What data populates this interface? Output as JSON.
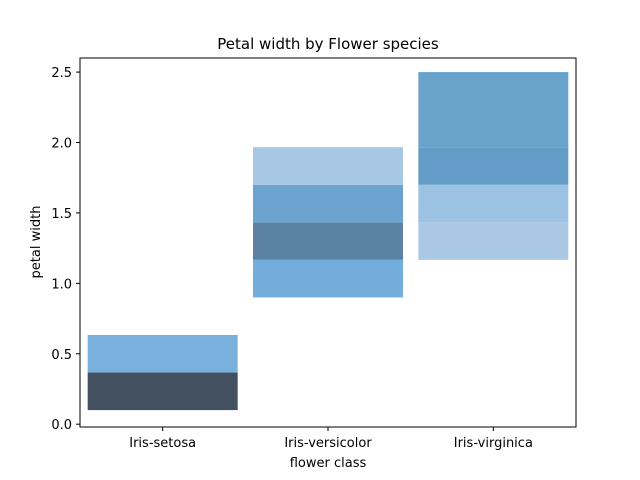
{
  "chart_data": {
    "type": "heatmap",
    "title": "Petal width by Flower species",
    "xlabel": "flower class",
    "ylabel": "petal width",
    "categories": [
      "Iris-setosa",
      "Iris-versicolor",
      "Iris-virginica"
    ],
    "ylim": [
      -0.02,
      2.6
    ],
    "yticks": [
      0.0,
      0.5,
      1.0,
      1.5,
      2.0,
      2.5
    ],
    "ytick_labels": [
      "0.0",
      "0.5",
      "1.0",
      "1.5",
      "2.0",
      "2.5"
    ],
    "grid": false,
    "bins": [
      {
        "category": "Iris-setosa",
        "y0": 0.1,
        "y1": 0.3667,
        "color": "#43505f"
      },
      {
        "category": "Iris-setosa",
        "y0": 0.3667,
        "y1": 0.6333,
        "color": "#79b1dc"
      },
      {
        "category": "Iris-versicolor",
        "y0": 0.9,
        "y1": 1.1667,
        "color": "#73addb"
      },
      {
        "category": "Iris-versicolor",
        "y0": 1.1667,
        "y1": 1.4333,
        "color": "#5b82a3"
      },
      {
        "category": "Iris-versicolor",
        "y0": 1.4333,
        "y1": 1.7,
        "color": "#6aa4cf"
      },
      {
        "category": "Iris-versicolor",
        "y0": 1.7,
        "y1": 1.9667,
        "color": "#a8c7e3"
      },
      {
        "category": "Iris-virginica",
        "y0": 1.1667,
        "y1": 1.4333,
        "color": "#aac8e4"
      },
      {
        "category": "Iris-virginica",
        "y0": 1.4333,
        "y1": 1.7,
        "color": "#9bc1e3"
      },
      {
        "category": "Iris-virginica",
        "y0": 1.7,
        "y1": 1.9667,
        "color": "#639dc7"
      },
      {
        "category": "Iris-virginica",
        "y0": 1.9667,
        "y1": 2.5,
        "color": "#68a3cb"
      }
    ]
  }
}
